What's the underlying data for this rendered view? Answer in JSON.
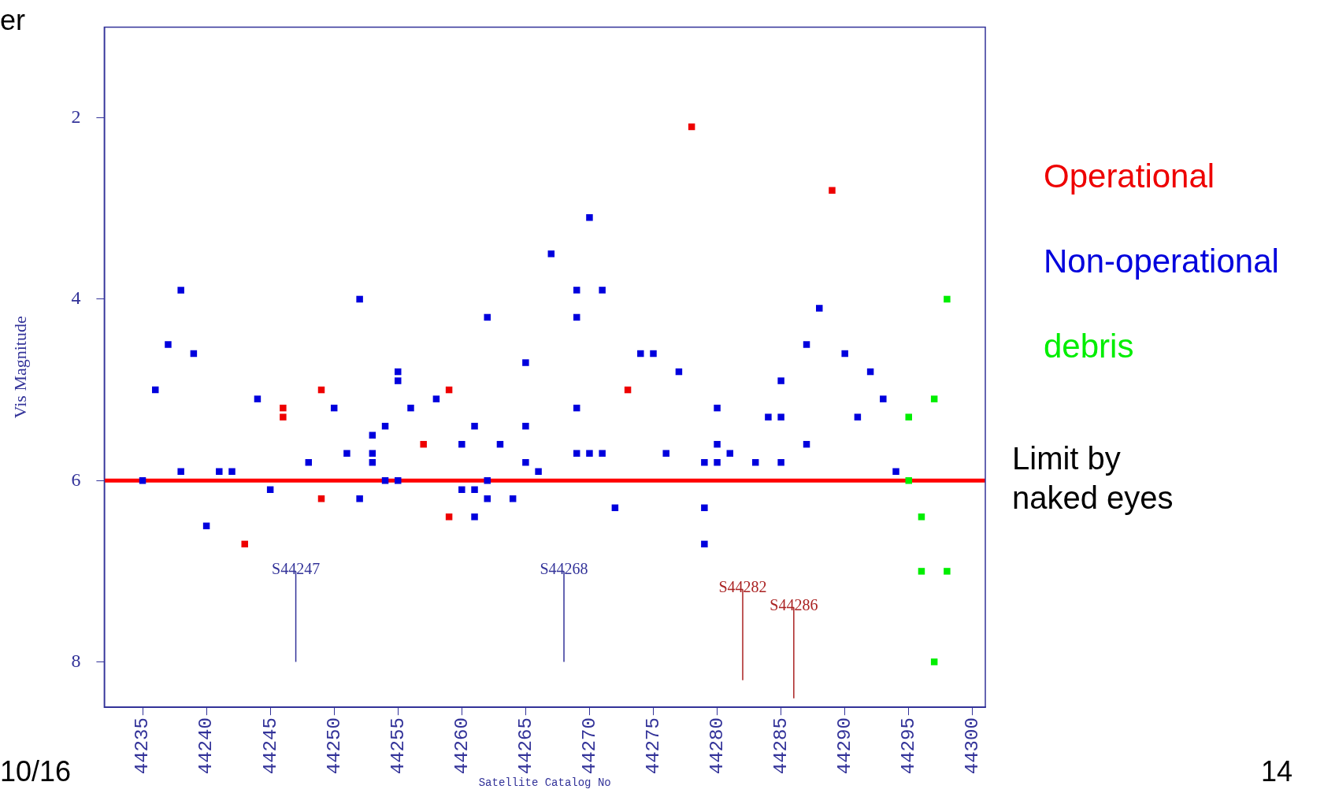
{
  "chart_data": {
    "type": "scatter",
    "ylabel": "Vis Magnitude",
    "xlabel": "Satellite Catalog No",
    "xlim": [
      44232,
      44301
    ],
    "ylim": [
      8.5,
      1
    ],
    "xticks": [
      44235,
      44240,
      44245,
      44250,
      44255,
      44260,
      44265,
      44270,
      44275,
      44280,
      44285,
      44290,
      44295,
      44300
    ],
    "yticks": [
      2,
      4,
      6,
      8
    ],
    "grid": false,
    "legend": "right",
    "marker": "square",
    "series": [
      {
        "name": "Operational",
        "color": "#ee0000",
        "x": [
          44243,
          44246,
          44246,
          44249,
          44249,
          44257,
          44259,
          44259,
          44273,
          44278,
          44289
        ],
        "values": [
          6.7,
          5.2,
          5.3,
          5.0,
          6.2,
          5.6,
          5.0,
          6.4,
          5.0,
          2.1,
          2.8
        ]
      },
      {
        "name": "Non-operational",
        "color": "#0000dd",
        "x": [
          44235,
          44236,
          44237,
          44238,
          44238,
          44239,
          44240,
          44241,
          44242,
          44244,
          44245,
          44248,
          44250,
          44251,
          44252,
          44252,
          44253,
          44253,
          44253,
          44254,
          44254,
          44255,
          44255,
          44255,
          44256,
          44258,
          44260,
          44260,
          44261,
          44261,
          44261,
          44262,
          44262,
          44262,
          44263,
          44264,
          44265,
          44265,
          44265,
          44266,
          44267,
          44269,
          44269,
          44269,
          44269,
          44270,
          44270,
          44271,
          44271,
          44272,
          44274,
          44275,
          44276,
          44277,
          44279,
          44279,
          44279,
          44280,
          44280,
          44280,
          44281,
          44283,
          44284,
          44285,
          44285,
          44285,
          44287,
          44287,
          44288,
          44290,
          44291,
          44292,
          44293,
          44294
        ],
        "values": [
          6.0,
          5.0,
          4.5,
          3.9,
          5.9,
          4.6,
          6.5,
          5.9,
          5.9,
          5.1,
          6.1,
          5.8,
          5.2,
          5.7,
          4.0,
          6.2,
          5.5,
          5.7,
          5.8,
          5.4,
          6.0,
          4.8,
          4.9,
          6.0,
          5.2,
          5.1,
          5.6,
          6.1,
          5.4,
          6.1,
          6.4,
          4.2,
          6.0,
          6.2,
          5.6,
          6.2,
          4.7,
          5.4,
          5.8,
          5.9,
          3.5,
          3.9,
          4.2,
          5.2,
          5.7,
          3.1,
          5.7,
          3.9,
          5.7,
          6.3,
          4.6,
          4.6,
          5.7,
          4.8,
          5.8,
          6.3,
          6.7,
          5.2,
          5.6,
          5.8,
          5.7,
          5.8,
          5.3,
          4.9,
          5.3,
          5.8,
          4.5,
          5.6,
          4.1,
          4.6,
          5.3,
          4.8,
          5.1,
          5.9
        ]
      },
      {
        "name": "debris",
        "color": "#00ee00",
        "x": [
          44295,
          44295,
          44296,
          44296,
          44297,
          44297,
          44298,
          44298
        ],
        "values": [
          5.3,
          6.0,
          6.4,
          7.0,
          5.1,
          8.0,
          4.0,
          7.0
        ]
      },
      {
        "type": "line",
        "color": "#333399",
        "marker": "none",
        "x": [
          44247,
          44247
        ],
        "values": [
          7.0,
          8
        ]
      },
      {
        "type": "line",
        "color": "#333399",
        "marker": "none",
        "x": [
          44268,
          44268
        ],
        "values": [
          7.0,
          8
        ]
      },
      {
        "type": "line",
        "color": "#aa2222",
        "marker": "none",
        "x": [
          44282,
          44282
        ],
        "values": [
          7.2,
          8.2
        ]
      },
      {
        "type": "line",
        "color": "#aa2222",
        "marker": "none",
        "x": [
          44286,
          44286
        ],
        "values": [
          7.4,
          8.4
        ]
      }
    ],
    "ref_lines": [
      {
        "axis": "y",
        "value": 6,
        "label": "Limit by naked eyes",
        "color": "#ff0000"
      }
    ],
    "annotations": [
      "er",
      "10/16",
      "14",
      {
        "text": "S44247",
        "x": 44247,
        "y": 7.0
      },
      {
        "text": "S44268",
        "x": 44268,
        "y": 7.0
      },
      {
        "text": "S44282",
        "x": 44282,
        "y": 7.2
      },
      {
        "text": "S44286",
        "x": 44286,
        "y": 7.4
      }
    ]
  }
}
